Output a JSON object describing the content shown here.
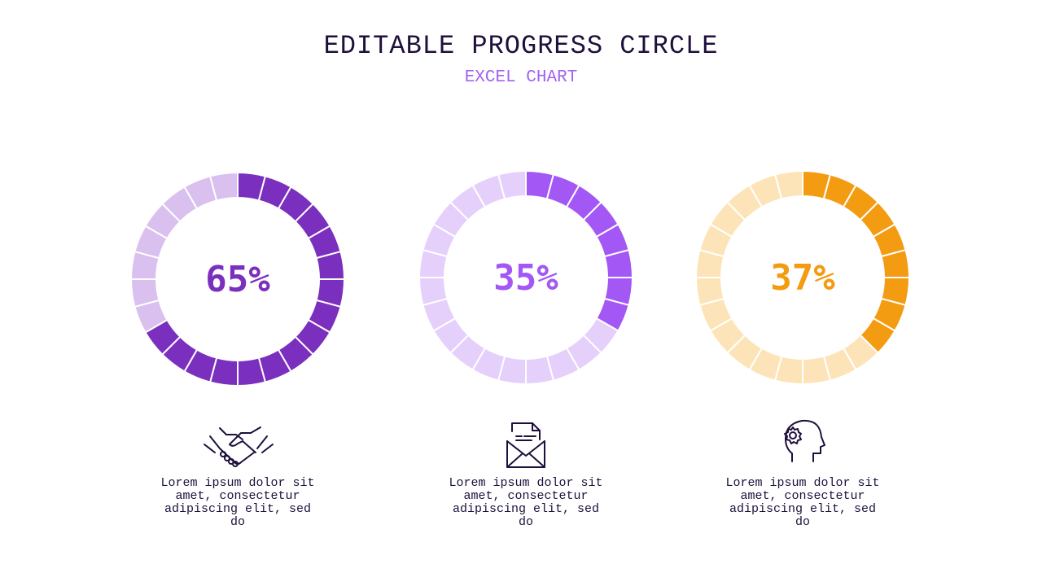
{
  "header": {
    "title": "EDITABLE PROGRESS CIRCLE",
    "subtitle": "EXCEL CHART"
  },
  "chart_data": [
    {
      "type": "pie",
      "segments": 24,
      "value": 65,
      "label": "65%",
      "color": "#7b2fbe",
      "track_color": "#d9c0ee",
      "description": "Lorem ipsum dolor sit amet, consectetur adipiscing elit, sed do",
      "icon": "handshake-icon"
    },
    {
      "type": "pie",
      "segments": 24,
      "value": 35,
      "label": "35%",
      "color": "#a357f4",
      "track_color": "#e5d0fc",
      "description": "Lorem ipsum dolor sit amet, consectetur adipiscing elit, sed do",
      "icon": "envelope-icon"
    },
    {
      "type": "pie",
      "segments": 24,
      "value": 37,
      "label": "37%",
      "color": "#f39c12",
      "track_color": "#fde4b8",
      "description": "Lorem ipsum dolor sit amet, consectetur adipiscing elit, sed do",
      "icon": "head-gear-icon"
    }
  ]
}
